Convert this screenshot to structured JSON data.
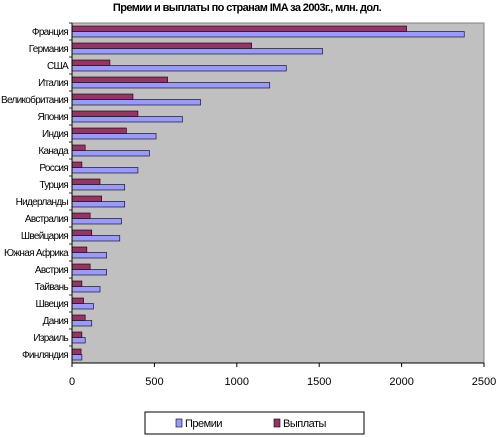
{
  "chart_data": {
    "type": "bar",
    "orientation": "horizontal",
    "title": "Премии и выплаты по странам IMA за 2003г., млн. дол.",
    "categories": [
      "Франция",
      "Германия",
      "США",
      "Италия",
      "Великобритания",
      "Япония",
      "Индия",
      "Канада",
      "Россия",
      "Турция",
      "Нидерланды",
      "Австралия",
      "Швейцария",
      "Южная Африка",
      "Австрия",
      "Тайвань",
      "Швеция",
      "Дания",
      "Израиль",
      "Финляндия"
    ],
    "series": [
      {
        "name": "Премии",
        "color": "#9999ff",
        "values": [
          2380,
          1520,
          1300,
          1200,
          780,
          670,
          510,
          470,
          400,
          320,
          320,
          300,
          290,
          210,
          210,
          170,
          130,
          120,
          80,
          60
        ]
      },
      {
        "name": "Выплаты",
        "color": "#993366",
        "values": [
          2030,
          1090,
          230,
          580,
          370,
          400,
          330,
          80,
          60,
          170,
          180,
          110,
          120,
          90,
          110,
          60,
          70,
          80,
          60,
          55
        ]
      }
    ],
    "xlim": [
      0,
      2500
    ],
    "xticks": [
      0,
      500,
      1000,
      1500,
      2000,
      2500
    ],
    "grid": false,
    "plot_background": "#c0c0c0",
    "legend_position": "bottom"
  }
}
